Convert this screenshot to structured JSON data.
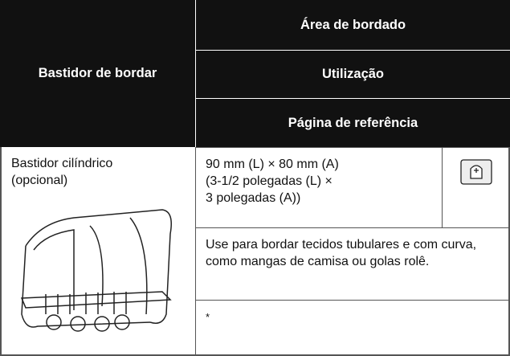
{
  "header": {
    "column_label": "Bastidor de bordar",
    "area": "Área de bordado",
    "usage": "Utilização",
    "reference": "Página de referência"
  },
  "row": {
    "hoop_name_lines": [
      "Bastidor cilíndrico",
      "(opcional)"
    ],
    "area_lines": [
      "90 mm (L) × 80 mm (A)",
      "(3-1/2 polegadas (L) ×",
      "3 polegadas (A))"
    ],
    "usage": "Use para bordar tecidos tubulares e com curva, como mangas de camisa ou golas rolê.",
    "reference": "*"
  }
}
